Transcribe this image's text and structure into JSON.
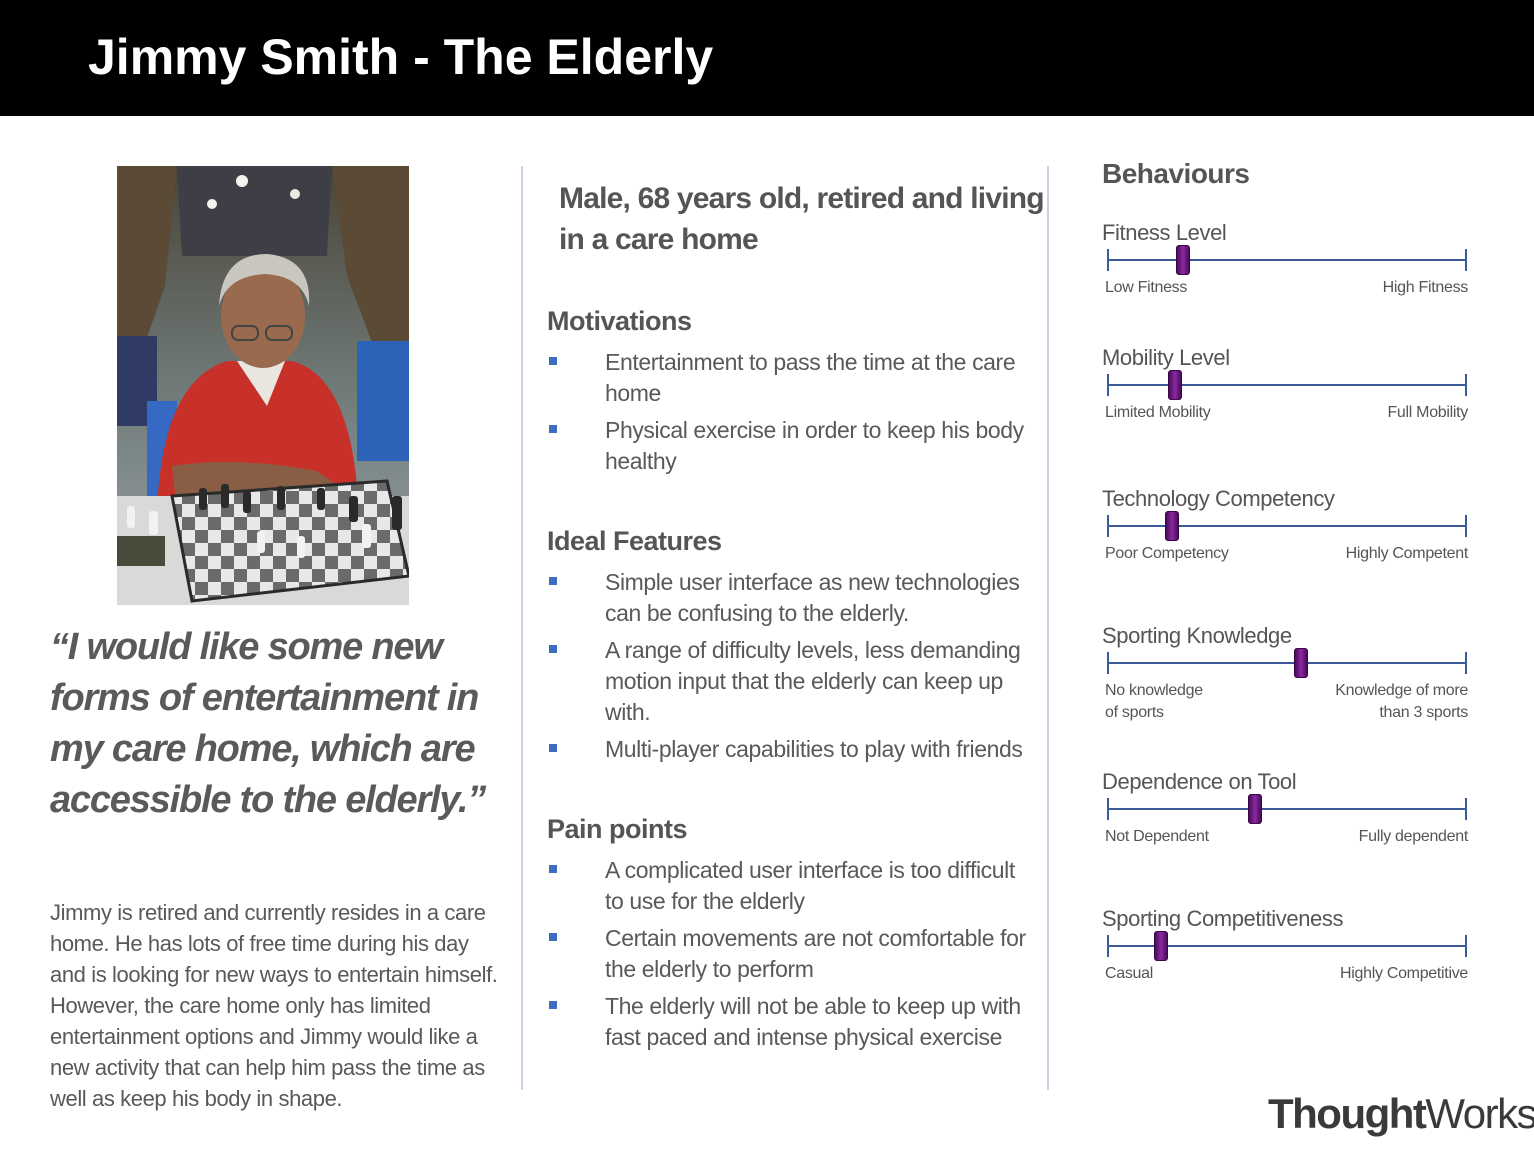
{
  "header": {
    "title": "Jimmy Smith - The Elderly"
  },
  "left": {
    "quote": "“I would like some new forms of entertainment in my care home, which are accessible to the elderly.”",
    "bio": "Jimmy is retired and currently resides in a care home. He has lots of free time during his day and is looking for new ways to entertain himself. However, the care home only has limited entertainment options and Jimmy would like a new activity that can help him pass the time as well as keep his body in shape."
  },
  "middle": {
    "summary": "Male, 68 years old, retired and living in a care home",
    "motivations": {
      "title": "Motivations",
      "items": [
        "Entertainment to pass the time at the care home",
        "Physical exercise in order to keep his body healthy"
      ]
    },
    "features": {
      "title": "Ideal Features",
      "items": [
        "Simple user interface as new technologies can be confusing to the elderly.",
        "A range of difficulty levels, less demanding motion input that the elderly can keep up with.",
        "Multi-player capabilities to play with friends"
      ]
    },
    "pain": {
      "title": "Pain points",
      "items": [
        "A complicated user interface is too difficult to use for the elderly",
        "Certain movements are not comfortable for the elderly to perform",
        "The elderly will not be able to keep up with fast paced and intense physical exercise"
      ]
    }
  },
  "behaviours": {
    "title": "Behaviours",
    "sliders": [
      {
        "label": "Fitness Level",
        "low": "Low Fitness",
        "high": "High Fitness",
        "value": 0.21
      },
      {
        "label": "Mobility Level",
        "low": "Limited Mobility",
        "high": "Full Mobility",
        "value": 0.19
      },
      {
        "label": "Technology Competency",
        "low": "Poor Competency",
        "high": "Highly Competent",
        "value": 0.18
      },
      {
        "label": "Sporting Knowledge",
        "low": "No knowledge\nof sports",
        "high": "Knowledge of more\nthan 3 sports",
        "value": 0.54
      },
      {
        "label": "Dependence on Tool",
        "low": "Not Dependent",
        "high": "Fully dependent",
        "value": 0.41
      },
      {
        "label": "Sporting Competitiveness",
        "low": "Casual",
        "high": "Highly Competitive",
        "value": 0.15
      }
    ]
  },
  "logo": {
    "bold": "Thought",
    "light": "Works",
    "reg": "®"
  }
}
